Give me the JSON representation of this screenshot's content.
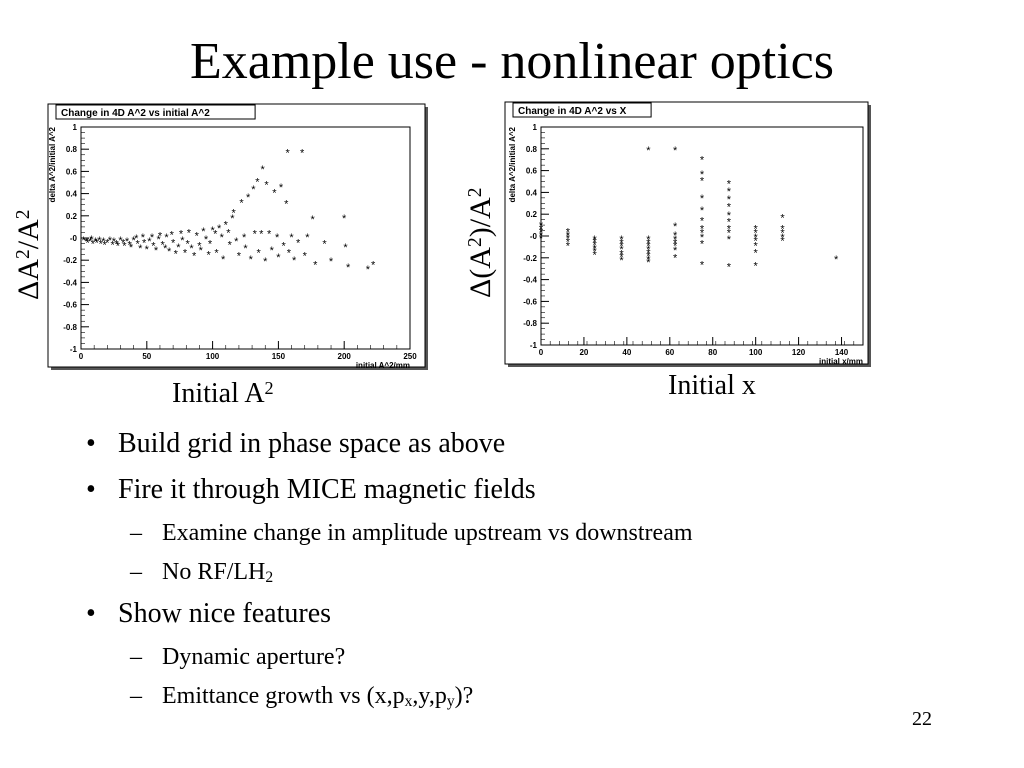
{
  "slide": {
    "title": "Example use - nonlinear optics",
    "page_number": "22",
    "left_side_label": {
      "prefix": "ΔA",
      "sup1": "2",
      "mid": "/A",
      "sup2": "2"
    },
    "right_side_label": {
      "prefix": "Δ(A",
      "sup1": "2",
      "mid": ")/A",
      "sup2": "2"
    },
    "left_x_caption": {
      "text": "Initial A",
      "sup": "2"
    },
    "right_x_caption": "Initial x",
    "bullets": [
      {
        "text": "Build grid in phase space as above"
      },
      {
        "text": "Fire it through MICE magnetic fields",
        "sub": [
          {
            "text": "Examine change in amplitude upstream vs downstream"
          },
          {
            "text": "No RF/LH",
            "subscript": "2"
          }
        ]
      },
      {
        "text": "Show nice features",
        "sub": [
          {
            "text": "Dynamic aperture?"
          },
          {
            "text": "Emittance growth vs (x,p",
            "s1": "x",
            "mid": ",y,p",
            "s2": "y",
            "end": ")?"
          }
        ]
      }
    ]
  },
  "chart_data": [
    {
      "type": "scatter",
      "title": "Change in 4D A^2 vs initial A^2",
      "xlabel": "initial A^2/mm",
      "ylabel": "delta A^2/initial A^2",
      "xlim": [
        0,
        250
      ],
      "ylim": [
        -1,
        1
      ],
      "x_ticks": [
        "0",
        "50",
        "100",
        "150",
        "200",
        "250"
      ],
      "y_ticks": [
        "-1",
        "-0.8",
        "-0.6",
        "-0.4",
        "-0.2",
        "-0",
        "0.2",
        "0.4",
        "0.6",
        "0.8",
        "1"
      ],
      "marker": "*",
      "color": "#000000",
      "points": [
        [
          2,
          -0.01
        ],
        [
          4,
          -0.02
        ],
        [
          5,
          -0.03
        ],
        [
          7,
          -0.02
        ],
        [
          8,
          0.0
        ],
        [
          9,
          -0.04
        ],
        [
          11,
          -0.02
        ],
        [
          12,
          -0.03
        ],
        [
          14,
          -0.01
        ],
        [
          15,
          -0.04
        ],
        [
          17,
          -0.02
        ],
        [
          18,
          -0.05
        ],
        [
          20,
          -0.03
        ],
        [
          22,
          -0.01
        ],
        [
          24,
          -0.05
        ],
        [
          25,
          -0.02
        ],
        [
          27,
          -0.04
        ],
        [
          28,
          -0.06
        ],
        [
          30,
          -0.01
        ],
        [
          32,
          -0.03
        ],
        [
          33,
          -0.06
        ],
        [
          35,
          -0.02
        ],
        [
          37,
          -0.05
        ],
        [
          38,
          -0.07
        ],
        [
          40,
          -0.01
        ],
        [
          42,
          0.01
        ],
        [
          43,
          -0.04
        ],
        [
          45,
          -0.08
        ],
        [
          47,
          0.02
        ],
        [
          48,
          -0.03
        ],
        [
          50,
          -0.09
        ],
        [
          52,
          -0.02
        ],
        [
          54,
          0.02
        ],
        [
          55,
          -0.06
        ],
        [
          57,
          -0.1
        ],
        [
          59,
          0.0
        ],
        [
          60,
          0.03
        ],
        [
          62,
          -0.05
        ],
        [
          64,
          -0.08
        ],
        [
          65,
          0.02
        ],
        [
          67,
          -0.11
        ],
        [
          69,
          0.04
        ],
        [
          70,
          -0.03
        ],
        [
          72,
          -0.13
        ],
        [
          74,
          -0.07
        ],
        [
          76,
          0.05
        ],
        [
          77,
          -0.01
        ],
        [
          79,
          -0.12
        ],
        [
          81,
          -0.04
        ],
        [
          82,
          0.06
        ],
        [
          84,
          -0.08
        ],
        [
          86,
          -0.15
        ],
        [
          88,
          0.03
        ],
        [
          90,
          -0.06
        ],
        [
          91,
          -0.1
        ],
        [
          93,
          0.07
        ],
        [
          95,
          0.0
        ],
        [
          97,
          -0.14
        ],
        [
          98,
          -0.04
        ],
        [
          100,
          0.08
        ],
        [
          102,
          0.05
        ],
        [
          103,
          -0.12
        ],
        [
          105,
          0.1
        ],
        [
          107,
          0.02
        ],
        [
          108,
          -0.18
        ],
        [
          110,
          0.13
        ],
        [
          112,
          0.06
        ],
        [
          113,
          -0.05
        ],
        [
          115,
          0.19
        ],
        [
          116,
          0.24
        ],
        [
          118,
          -0.02
        ],
        [
          120,
          -0.15
        ],
        [
          122,
          0.33
        ],
        [
          124,
          0.02
        ],
        [
          125,
          -0.08
        ],
        [
          127,
          0.38
        ],
        [
          129,
          -0.18
        ],
        [
          131,
          0.45
        ],
        [
          132,
          0.05
        ],
        [
          134,
          0.52
        ],
        [
          135,
          -0.12
        ],
        [
          137,
          0.05
        ],
        [
          138,
          0.63
        ],
        [
          140,
          -0.2
        ],
        [
          141,
          0.49
        ],
        [
          143,
          0.05
        ],
        [
          145,
          -0.1
        ],
        [
          147,
          0.42
        ],
        [
          149,
          0.02
        ],
        [
          150,
          -0.16
        ],
        [
          152,
          0.47
        ],
        [
          154,
          -0.06
        ],
        [
          156,
          0.32
        ],
        [
          157,
          0.78
        ],
        [
          158,
          -0.12
        ],
        [
          160,
          0.02
        ],
        [
          162,
          -0.19
        ],
        [
          165,
          -0.03
        ],
        [
          168,
          0.78
        ],
        [
          170,
          -0.15
        ],
        [
          172,
          0.02
        ],
        [
          176,
          0.18
        ],
        [
          178,
          -0.23
        ],
        [
          185,
          -0.04
        ],
        [
          190,
          -0.2
        ],
        [
          200,
          0.19
        ],
        [
          201,
          -0.07
        ],
        [
          203,
          -0.25
        ],
        [
          218,
          -0.27
        ],
        [
          222,
          -0.23
        ]
      ]
    },
    {
      "type": "scatter",
      "title": "Change in 4D A^2 vs X",
      "xlabel": "initial x/mm",
      "ylabel": "delta A^2/initial A^2",
      "xlim": [
        0,
        150
      ],
      "ylim": [
        -1,
        1
      ],
      "x_ticks": [
        "0",
        "20",
        "40",
        "60",
        "80",
        "100",
        "120",
        "140"
      ],
      "y_ticks": [
        "-1",
        "-0.8",
        "-0.6",
        "-0.4",
        "-0.2",
        "-0",
        "0.2",
        "0.4",
        "0.6",
        "0.8",
        "1"
      ],
      "marker": "*",
      "color": "#000000",
      "points": [
        [
          0,
          0.08
        ],
        [
          0,
          0.05
        ],
        [
          0,
          0.02
        ],
        [
          0,
          -0.01
        ],
        [
          0,
          0.11
        ],
        [
          12.5,
          0.02
        ],
        [
          12.5,
          -0.01
        ],
        [
          12.5,
          -0.04
        ],
        [
          12.5,
          -0.08
        ],
        [
          12.5,
          0.05
        ],
        [
          25,
          -0.04
        ],
        [
          25,
          -0.07
        ],
        [
          25,
          -0.1
        ],
        [
          25,
          -0.13
        ],
        [
          25,
          -0.02
        ],
        [
          25,
          -0.16
        ],
        [
          37.5,
          -0.05
        ],
        [
          37.5,
          -0.08
        ],
        [
          37.5,
          -0.11
        ],
        [
          37.5,
          -0.15
        ],
        [
          37.5,
          -0.18
        ],
        [
          37.5,
          -0.02
        ],
        [
          37.5,
          -0.21
        ],
        [
          50,
          0.8
        ],
        [
          50,
          -0.05
        ],
        [
          50,
          -0.08
        ],
        [
          50,
          -0.11
        ],
        [
          50,
          -0.14
        ],
        [
          50,
          -0.17
        ],
        [
          50,
          -0.2
        ],
        [
          50,
          -0.23
        ],
        [
          50,
          -0.02
        ],
        [
          62.5,
          0.8
        ],
        [
          62.5,
          0.1
        ],
        [
          62.5,
          0.02
        ],
        [
          62.5,
          -0.02
        ],
        [
          62.5,
          -0.05
        ],
        [
          62.5,
          -0.08
        ],
        [
          62.5,
          -0.12
        ],
        [
          62.5,
          -0.19
        ],
        [
          75,
          0.71
        ],
        [
          75,
          0.58
        ],
        [
          75,
          0.52
        ],
        [
          75,
          0.36
        ],
        [
          75,
          0.25
        ],
        [
          75,
          0.15
        ],
        [
          75,
          0.08
        ],
        [
          75,
          0.04
        ],
        [
          75,
          0.0
        ],
        [
          75,
          -0.06
        ],
        [
          75,
          -0.25
        ],
        [
          87.5,
          0.49
        ],
        [
          87.5,
          0.42
        ],
        [
          87.5,
          0.35
        ],
        [
          87.5,
          0.28
        ],
        [
          87.5,
          0.2
        ],
        [
          87.5,
          0.14
        ],
        [
          87.5,
          0.08
        ],
        [
          87.5,
          0.04
        ],
        [
          87.5,
          -0.02
        ],
        [
          87.5,
          -0.27
        ],
        [
          100,
          0.08
        ],
        [
          100,
          0.04
        ],
        [
          100,
          0.0
        ],
        [
          100,
          -0.03
        ],
        [
          100,
          -0.08
        ],
        [
          100,
          -0.14
        ],
        [
          100,
          -0.26
        ],
        [
          112.5,
          0.18
        ],
        [
          112.5,
          0.08
        ],
        [
          112.5,
          0.04
        ],
        [
          112.5,
          0.0
        ],
        [
          112.5,
          -0.03
        ],
        [
          137.5,
          -0.2
        ]
      ]
    }
  ]
}
